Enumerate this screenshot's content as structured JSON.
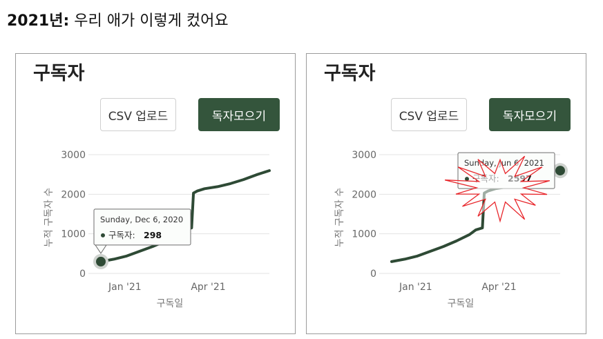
{
  "heading": {
    "year": "2021년:",
    "rest": " 우리 애가 이렇게 컸어요"
  },
  "panels": [
    {
      "title": "구독자",
      "csv_button": "CSV 업로드",
      "collect_button": "독자모으기",
      "tooltip": {
        "date": "Sunday, Dec 6, 2020",
        "label": "구독자:",
        "value": "298"
      },
      "hover_index": 0,
      "starburst": false
    },
    {
      "title": "구독자",
      "csv_button": "CSV 업로드",
      "collect_button": "독자모으기",
      "tooltip": {
        "date": "Sunday, Jun 6, 2021",
        "label": "구독자:",
        "value": "2597"
      },
      "hover_index": -1,
      "starburst": true
    }
  ],
  "colors": {
    "line": "#2e4a35",
    "button": "#34553c",
    "grid": "#e3e3e3",
    "burst": "#e8262b"
  },
  "chart_data": [
    {
      "type": "line",
      "title": "",
      "xlabel": "구독일",
      "ylabel": "누적 구독자 수",
      "ylim": [
        0,
        3000
      ],
      "yticks": [
        "0",
        "1000",
        "2000",
        "3000"
      ],
      "xticks": [
        {
          "date": "2021-01-01",
          "label": "Jan '21"
        },
        {
          "date": "2021-04-01",
          "label": "Apr '21"
        }
      ],
      "xlim": [
        "2020-12-06",
        "2021-06-06"
      ],
      "series": [
        {
          "x": [
            "2020-12-06",
            "2020-12-20",
            "2021-01-03",
            "2021-01-17",
            "2021-01-31",
            "2021-02-14",
            "2021-02-28",
            "2021-03-07",
            "2021-03-14",
            "2021-03-16",
            "2021-03-20",
            "2021-03-28",
            "2021-04-11",
            "2021-04-25",
            "2021-05-09",
            "2021-05-23",
            "2021-06-06"
          ],
          "y": [
            298,
            360,
            440,
            560,
            680,
            820,
            980,
            1100,
            1150,
            2030,
            2080,
            2140,
            2190,
            2270,
            2370,
            2490,
            2597
          ]
        }
      ]
    },
    {
      "type": "line",
      "title": "",
      "xlabel": "구독일",
      "ylabel": "누적 구독자 수",
      "ylim": [
        0,
        3000
      ],
      "yticks": [
        "0",
        "1000",
        "2000",
        "3000"
      ],
      "xticks": [
        {
          "date": "2021-01-01",
          "label": "Jan '21"
        },
        {
          "date": "2021-04-01",
          "label": "Apr '21"
        }
      ],
      "xlim": [
        "2020-12-06",
        "2021-06-06"
      ],
      "series": [
        {
          "x": [
            "2020-12-06",
            "2020-12-20",
            "2021-01-03",
            "2021-01-17",
            "2021-01-31",
            "2021-02-14",
            "2021-02-28",
            "2021-03-07",
            "2021-03-14",
            "2021-03-16",
            "2021-03-20",
            "2021-03-28",
            "2021-04-11",
            "2021-04-25",
            "2021-05-09",
            "2021-05-23",
            "2021-06-06"
          ],
          "y": [
            298,
            360,
            440,
            560,
            680,
            820,
            980,
            1100,
            1150,
            2030,
            2080,
            2140,
            2190,
            2270,
            2370,
            2490,
            2597
          ]
        }
      ]
    }
  ]
}
